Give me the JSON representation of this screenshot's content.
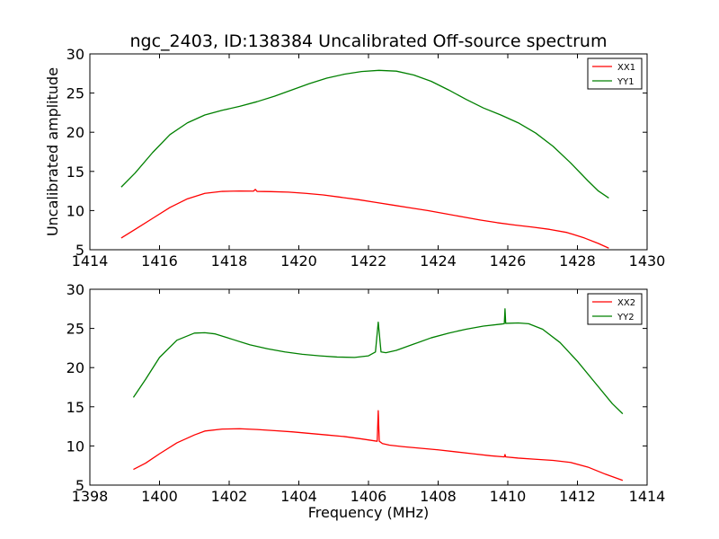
{
  "chart_data": [
    {
      "type": "line",
      "title": "ngc_2403, ID:138384 Uncalibrated Off-source spectrum",
      "xlabel": "",
      "ylabel": "Uncalibrated amplitude",
      "xlim": [
        1414,
        1430
      ],
      "ylim": [
        5,
        30
      ],
      "xticks": [
        1414,
        1416,
        1418,
        1420,
        1422,
        1424,
        1426,
        1428,
        1430
      ],
      "yticks": [
        5,
        10,
        15,
        20,
        25,
        30
      ],
      "grid": false,
      "legend_position": "top-right",
      "series": [
        {
          "name": "XX1",
          "color": "#ff0000",
          "x": [
            1414.9,
            1415.3,
            1415.8,
            1416.3,
            1416.8,
            1417.3,
            1417.8,
            1418.3,
            1418.7,
            1418.75,
            1418.8,
            1419.2,
            1419.7,
            1420.2,
            1420.7,
            1421.2,
            1421.7,
            1422.2,
            1422.7,
            1423.2,
            1423.7,
            1424.2,
            1424.7,
            1425.2,
            1425.7,
            1426.2,
            1426.7,
            1427.2,
            1427.7,
            1428.2,
            1428.6,
            1428.9
          ],
          "y": [
            6.5,
            7.6,
            9.0,
            10.4,
            11.5,
            12.2,
            12.45,
            12.5,
            12.48,
            12.7,
            12.45,
            12.42,
            12.35,
            12.2,
            12.0,
            11.7,
            11.4,
            11.05,
            10.7,
            10.35,
            10.0,
            9.6,
            9.2,
            8.8,
            8.45,
            8.15,
            7.9,
            7.6,
            7.2,
            6.5,
            5.8,
            5.2
          ]
        },
        {
          "name": "YY1",
          "color": "#008000",
          "x": [
            1414.9,
            1415.3,
            1415.8,
            1416.3,
            1416.8,
            1417.3,
            1417.8,
            1418.3,
            1418.8,
            1419.3,
            1419.8,
            1420.3,
            1420.8,
            1421.3,
            1421.8,
            1422.3,
            1422.8,
            1423.3,
            1423.8,
            1424.3,
            1424.8,
            1425.3,
            1425.8,
            1426.3,
            1426.8,
            1427.3,
            1427.8,
            1428.3,
            1428.6,
            1428.9
          ],
          "y": [
            13.0,
            14.8,
            17.4,
            19.7,
            21.2,
            22.2,
            22.8,
            23.3,
            23.9,
            24.6,
            25.4,
            26.2,
            26.9,
            27.4,
            27.75,
            27.9,
            27.8,
            27.3,
            26.5,
            25.4,
            24.2,
            23.1,
            22.2,
            21.2,
            19.9,
            18.2,
            16.1,
            13.8,
            12.5,
            11.6
          ]
        }
      ]
    },
    {
      "type": "line",
      "title": "",
      "xlabel": "Frequency (MHz)",
      "ylabel": "",
      "xlim": [
        1398,
        1414
      ],
      "ylim": [
        5,
        30
      ],
      "xticks": [
        1398,
        1400,
        1402,
        1404,
        1406,
        1408,
        1410,
        1412,
        1414
      ],
      "yticks": [
        5,
        10,
        15,
        20,
        25,
        30
      ],
      "grid": false,
      "legend_position": "top-right",
      "series": [
        {
          "name": "XX2",
          "color": "#ff0000",
          "x": [
            1399.25,
            1399.6,
            1400.0,
            1400.5,
            1401.0,
            1401.3,
            1401.8,
            1402.3,
            1402.8,
            1403.3,
            1403.8,
            1404.3,
            1404.8,
            1405.3,
            1405.8,
            1406.1,
            1406.25,
            1406.28,
            1406.31,
            1406.4,
            1406.6,
            1407.0,
            1407.5,
            1408.0,
            1408.5,
            1409.0,
            1409.5,
            1409.9,
            1409.92,
            1409.94,
            1410.3,
            1410.8,
            1411.3,
            1411.8,
            1412.3,
            1412.8,
            1413.3
          ],
          "y": [
            7.0,
            7.8,
            9.0,
            10.4,
            11.4,
            11.9,
            12.15,
            12.2,
            12.1,
            11.95,
            11.8,
            11.6,
            11.4,
            11.2,
            10.9,
            10.7,
            10.6,
            14.5,
            10.6,
            10.3,
            10.1,
            9.9,
            9.7,
            9.5,
            9.25,
            9.0,
            8.75,
            8.6,
            8.9,
            8.6,
            8.45,
            8.3,
            8.15,
            7.9,
            7.3,
            6.4,
            5.6
          ]
        },
        {
          "name": "YY2",
          "color": "#008000",
          "x": [
            1399.25,
            1399.6,
            1400.0,
            1400.5,
            1401.0,
            1401.3,
            1401.6,
            1402.1,
            1402.6,
            1403.1,
            1403.6,
            1404.1,
            1404.6,
            1405.1,
            1405.6,
            1406.0,
            1406.2,
            1406.28,
            1406.36,
            1406.5,
            1406.8,
            1407.3,
            1407.8,
            1408.3,
            1408.8,
            1409.3,
            1409.8,
            1409.9,
            1409.92,
            1409.94,
            1410.3,
            1410.6,
            1411.0,
            1411.5,
            1412.0,
            1412.5,
            1413.0,
            1413.3
          ],
          "y": [
            16.2,
            18.5,
            21.3,
            23.5,
            24.4,
            24.45,
            24.3,
            23.6,
            22.9,
            22.4,
            22.0,
            21.7,
            21.5,
            21.35,
            21.3,
            21.5,
            22.0,
            25.8,
            22.0,
            21.9,
            22.2,
            23.0,
            23.8,
            24.4,
            24.9,
            25.3,
            25.55,
            25.6,
            27.5,
            25.65,
            25.7,
            25.6,
            24.9,
            23.2,
            20.8,
            18.1,
            15.4,
            14.1
          ]
        }
      ]
    }
  ]
}
